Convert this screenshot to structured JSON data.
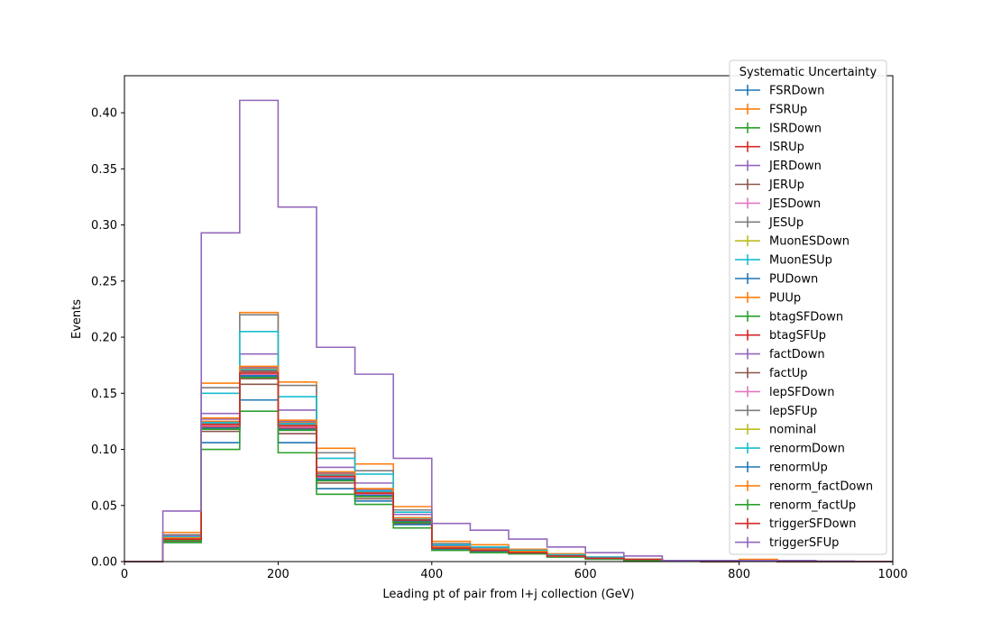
{
  "chart_data": {
    "type": "histogram-step",
    "xlabel": "Leading pt of pair from l+j collection (GeV)",
    "ylabel": "Events",
    "xlim": [
      0,
      1000
    ],
    "ylim": [
      0,
      0.433
    ],
    "grid": false,
    "x_ticks": [
      "0",
      "200",
      "400",
      "600",
      "800",
      "1000"
    ],
    "y_ticks": [
      "0.00",
      "0.05",
      "0.10",
      "0.15",
      "0.20",
      "0.25",
      "0.30",
      "0.35",
      "0.40"
    ],
    "legend": {
      "title": "Systematic Uncertainty",
      "placement": "top-right"
    },
    "bin_edges": [
      0,
      50,
      100,
      150,
      200,
      250,
      300,
      350,
      400,
      450,
      500,
      550,
      600,
      650,
      700,
      750,
      800,
      850,
      900,
      950,
      1000
    ],
    "series": [
      {
        "name": "FSRDown",
        "color": "#1f77b4",
        "values": [
          0,
          0.02,
          0.12,
          0.166,
          0.12,
          0.074,
          0.06,
          0.037,
          0.012,
          0.01,
          0.008,
          0.005,
          0.003,
          0.002,
          0.001,
          0,
          0.001,
          0,
          0,
          0
        ]
      },
      {
        "name": "FSRUp",
        "color": "#ff7f0e",
        "values": [
          0,
          0.026,
          0.159,
          0.222,
          0.16,
          0.101,
          0.087,
          0.049,
          0.018,
          0.015,
          0.011,
          0.007,
          0.004,
          0.002,
          0.001,
          0,
          0.002,
          0,
          0,
          0
        ]
      },
      {
        "name": "ISRDown",
        "color": "#2ca02c",
        "values": [
          0,
          0.019,
          0.122,
          0.17,
          0.121,
          0.077,
          0.062,
          0.036,
          0.013,
          0.011,
          0.008,
          0.005,
          0.003,
          0.002,
          0.001,
          0,
          0.001,
          0,
          0,
          0
        ]
      },
      {
        "name": "ISRUp",
        "color": "#d62728",
        "values": [
          0,
          0.019,
          0.12,
          0.167,
          0.119,
          0.072,
          0.058,
          0.036,
          0.012,
          0.01,
          0.008,
          0.005,
          0.003,
          0.002,
          0.001,
          0,
          0.001,
          0,
          0,
          0
        ]
      },
      {
        "name": "JERDown",
        "color": "#9467bd",
        "values": [
          0,
          0.023,
          0.132,
          0.185,
          0.135,
          0.084,
          0.07,
          0.042,
          0.014,
          0.012,
          0.009,
          0.006,
          0.003,
          0.002,
          0.001,
          0,
          0.001,
          0,
          0,
          0
        ]
      },
      {
        "name": "JERUp",
        "color": "#8c564b",
        "values": [
          0,
          0.018,
          0.116,
          0.158,
          0.114,
          0.07,
          0.056,
          0.034,
          0.011,
          0.01,
          0.007,
          0.005,
          0.003,
          0.002,
          0.001,
          0,
          0.001,
          0,
          0,
          0
        ]
      },
      {
        "name": "JESDown",
        "color": "#e377c2",
        "values": [
          0,
          0.02,
          0.121,
          0.168,
          0.12,
          0.076,
          0.061,
          0.037,
          0.012,
          0.01,
          0.008,
          0.005,
          0.003,
          0.002,
          0.001,
          0,
          0.001,
          0,
          0,
          0
        ]
      },
      {
        "name": "JESUp",
        "color": "#7f7f7f",
        "values": [
          0,
          0.024,
          0.155,
          0.22,
          0.157,
          0.097,
          0.081,
          0.046,
          0.016,
          0.013,
          0.01,
          0.006,
          0.004,
          0.002,
          0.001,
          0,
          0.001,
          0,
          0,
          0
        ]
      },
      {
        "name": "MuonESDown",
        "color": "#bcbd22",
        "values": [
          0,
          0.019,
          0.121,
          0.168,
          0.121,
          0.075,
          0.061,
          0.036,
          0.012,
          0.01,
          0.008,
          0.005,
          0.003,
          0.002,
          0.001,
          0,
          0.001,
          0,
          0,
          0
        ]
      },
      {
        "name": "MuonESUp",
        "color": "#17becf",
        "values": [
          0,
          0.022,
          0.15,
          0.205,
          0.147,
          0.092,
          0.078,
          0.044,
          0.015,
          0.013,
          0.01,
          0.006,
          0.004,
          0.002,
          0.001,
          0,
          0.001,
          0,
          0,
          0
        ]
      },
      {
        "name": "PUDown",
        "color": "#1f77b4",
        "values": [
          0,
          0.017,
          0.106,
          0.144,
          0.106,
          0.065,
          0.054,
          0.033,
          0.011,
          0.009,
          0.007,
          0.005,
          0.003,
          0.002,
          0.001,
          0,
          0.001,
          0,
          0,
          0
        ]
      },
      {
        "name": "PUUp",
        "color": "#ff7f0e",
        "values": [
          0,
          0.021,
          0.125,
          0.172,
          0.124,
          0.078,
          0.064,
          0.038,
          0.013,
          0.011,
          0.008,
          0.005,
          0.003,
          0.002,
          0.001,
          0,
          0.001,
          0,
          0,
          0
        ]
      },
      {
        "name": "btagSFDown",
        "color": "#2ca02c",
        "values": [
          0,
          0.017,
          0.1,
          0.134,
          0.097,
          0.06,
          0.051,
          0.03,
          0.01,
          0.008,
          0.007,
          0.004,
          0.002,
          0.001,
          0.001,
          0,
          0.001,
          0,
          0,
          0
        ]
      },
      {
        "name": "btagSFUp",
        "color": "#d62728",
        "values": [
          0,
          0.02,
          0.124,
          0.17,
          0.123,
          0.079,
          0.063,
          0.038,
          0.013,
          0.011,
          0.008,
          0.005,
          0.003,
          0.002,
          0.001,
          0,
          0.001,
          0,
          0,
          0
        ]
      },
      {
        "name": "factDown",
        "color": "#9467bd",
        "values": [
          0,
          0.021,
          0.127,
          0.173,
          0.125,
          0.079,
          0.064,
          0.039,
          0.013,
          0.011,
          0.008,
          0.005,
          0.003,
          0.002,
          0.001,
          0,
          0.001,
          0,
          0,
          0
        ]
      },
      {
        "name": "factUp",
        "color": "#8c564b",
        "values": [
          0,
          0.019,
          0.118,
          0.163,
          0.117,
          0.073,
          0.059,
          0.036,
          0.012,
          0.01,
          0.008,
          0.005,
          0.003,
          0.002,
          0.001,
          0,
          0.001,
          0,
          0,
          0
        ]
      },
      {
        "name": "lepSFDown",
        "color": "#e377c2",
        "values": [
          0,
          0.019,
          0.121,
          0.167,
          0.12,
          0.075,
          0.06,
          0.036,
          0.012,
          0.01,
          0.008,
          0.005,
          0.003,
          0.002,
          0.001,
          0,
          0.001,
          0,
          0,
          0
        ]
      },
      {
        "name": "lepSFUp",
        "color": "#7f7f7f",
        "values": [
          0,
          0.02,
          0.123,
          0.169,
          0.122,
          0.076,
          0.062,
          0.037,
          0.013,
          0.011,
          0.008,
          0.005,
          0.003,
          0.002,
          0.001,
          0,
          0.001,
          0,
          0,
          0
        ]
      },
      {
        "name": "nominal",
        "color": "#bcbd22",
        "values": [
          0,
          0.02,
          0.122,
          0.168,
          0.121,
          0.076,
          0.061,
          0.037,
          0.012,
          0.01,
          0.008,
          0.005,
          0.003,
          0.002,
          0.001,
          0,
          0.001,
          0,
          0,
          0
        ]
      },
      {
        "name": "renormDown",
        "color": "#17becf",
        "values": [
          0,
          0.02,
          0.124,
          0.171,
          0.123,
          0.077,
          0.063,
          0.038,
          0.013,
          0.011,
          0.008,
          0.005,
          0.003,
          0.002,
          0.001,
          0,
          0.001,
          0,
          0,
          0
        ]
      },
      {
        "name": "renormUp",
        "color": "#1f77b4",
        "values": [
          0,
          0.019,
          0.119,
          0.165,
          0.118,
          0.073,
          0.059,
          0.036,
          0.012,
          0.01,
          0.008,
          0.005,
          0.003,
          0.002,
          0.001,
          0,
          0.001,
          0,
          0,
          0
        ]
      },
      {
        "name": "renorm_factDown",
        "color": "#ff7f0e",
        "values": [
          0,
          0.021,
          0.128,
          0.174,
          0.126,
          0.08,
          0.065,
          0.039,
          0.013,
          0.011,
          0.009,
          0.005,
          0.003,
          0.002,
          0.001,
          0,
          0.001,
          0,
          0,
          0
        ]
      },
      {
        "name": "renorm_factUp",
        "color": "#2ca02c",
        "values": [
          0,
          0.019,
          0.118,
          0.164,
          0.117,
          0.072,
          0.058,
          0.035,
          0.012,
          0.01,
          0.008,
          0.005,
          0.003,
          0.002,
          0.001,
          0,
          0.001,
          0,
          0,
          0
        ]
      },
      {
        "name": "triggerSFDown",
        "color": "#d62728",
        "values": [
          0,
          0.02,
          0.122,
          0.168,
          0.121,
          0.076,
          0.061,
          0.037,
          0.012,
          0.01,
          0.008,
          0.005,
          0.003,
          0.002,
          0.001,
          0,
          0.001,
          0,
          0,
          0
        ]
      },
      {
        "name": "triggerSFUp",
        "color": "#9467bd",
        "values": [
          0,
          0.045,
          0.293,
          0.411,
          0.316,
          0.191,
          0.167,
          0.092,
          0.034,
          0.028,
          0.02,
          0.013,
          0.008,
          0.005,
          0.001,
          0.001,
          0.001,
          0.001,
          0.0005,
          0
        ]
      }
    ]
  }
}
